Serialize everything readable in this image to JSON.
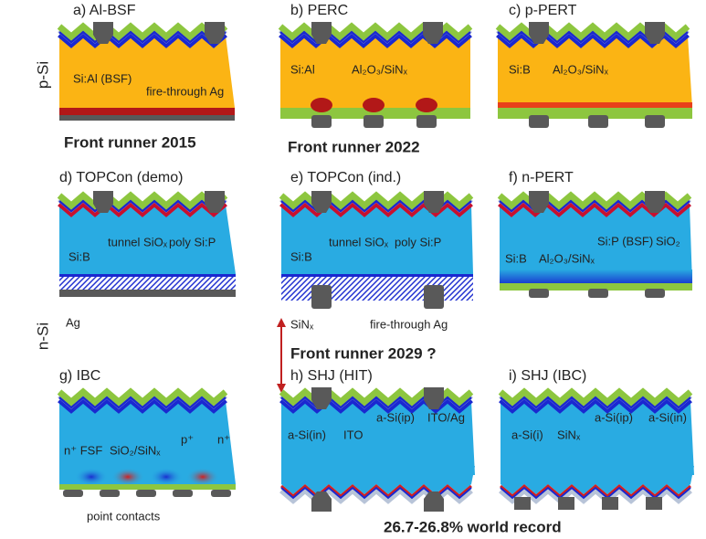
{
  "row_labels": [
    "p-Si",
    "n-Si"
  ],
  "panels": [
    {
      "title": "a) Al-BSF",
      "labels": [
        "Si:Al (BSF)",
        "fire-through Ag"
      ]
    },
    {
      "title": "b) PERC",
      "labels": [
        "Si:Al",
        "Al₂O₃/SiNₓ"
      ]
    },
    {
      "title": "c) p-PERT",
      "labels": [
        "Si:B",
        "Al₂O₃/SiNₓ"
      ]
    },
    {
      "title": "d) TOPCon (demo)",
      "labels": [
        "tunnel SiOₓ",
        "poly Si:P",
        "Si:B",
        "Ag"
      ]
    },
    {
      "title": "e) TOPCon (ind.)",
      "labels": [
        "tunnel SiOₓ",
        "poly Si:P",
        "Si:B",
        "SiNₓ",
        "fire-through Ag"
      ]
    },
    {
      "title": "f) n-PERT",
      "labels": [
        "Si:P (BSF)",
        "SiO₂",
        "Si:B",
        "Al₂O₃/SiNₓ"
      ]
    },
    {
      "title": "g) IBC",
      "labels": [
        "p⁺",
        "n⁺",
        "n⁺ FSF",
        "SiO₂/SiNₓ",
        "point contacts"
      ]
    },
    {
      "title": "h) SHJ (HIT)",
      "labels": [
        "a-Si(ip)",
        "ITO/Ag",
        "a-Si(in)",
        "ITO"
      ]
    },
    {
      "title": "i) SHJ (IBC)",
      "labels": [
        "a-Si(ip)",
        "a-Si(in)",
        "a-Si(i)",
        "SiNₓ"
      ]
    }
  ],
  "notes": [
    "Front runner 2015",
    "Front runner 2022",
    "Front runner 2029 ?",
    "26.7-26.8% world record"
  ]
}
